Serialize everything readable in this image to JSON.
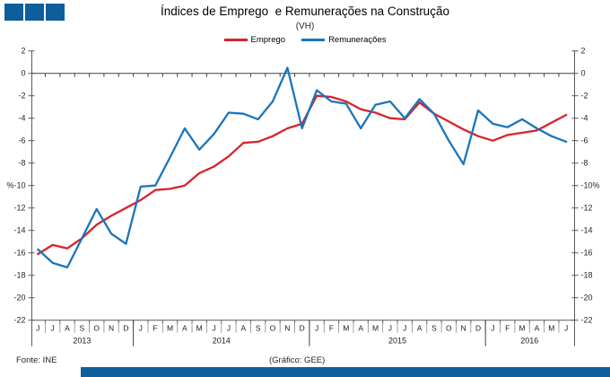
{
  "title": "Índices de Emprego  e Remunerações na Construção",
  "subtitle": "(VH)",
  "brand": {
    "logo_color": "#0d5e9b",
    "footer_bar_color": "#0d5e9b"
  },
  "legend": [
    {
      "label": "Emprego",
      "color": "#d9232a"
    },
    {
      "label": "Remunerações",
      "color": "#1b75bc"
    }
  ],
  "footer": {
    "source": "Fonte: INE",
    "credit": "(Gráfico: GEE)"
  },
  "chart_data": {
    "type": "line",
    "title": "Índices de Emprego e Remunerações na Construção (VH)",
    "unit": "%",
    "ylim": [
      -22,
      2
    ],
    "ytick_step": 2,
    "grid": false,
    "legend_position": "top",
    "axis_color": "#595959",
    "years": [
      {
        "label": "2013",
        "months": [
          "J",
          "J",
          "A",
          "S",
          "O",
          "N",
          "D"
        ]
      },
      {
        "label": "2014",
        "months": [
          "J",
          "F",
          "M",
          "A",
          "M",
          "J",
          "J",
          "A",
          "S",
          "O",
          "N",
          "D"
        ]
      },
      {
        "label": "2015",
        "months": [
          "J",
          "F",
          "M",
          "A",
          "M",
          "J",
          "J",
          "A",
          "S",
          "O",
          "N",
          "D"
        ]
      },
      {
        "label": "2016",
        "months": [
          "J",
          "F",
          "M",
          "A",
          "M",
          "J"
        ]
      }
    ],
    "series": [
      {
        "name": "Emprego",
        "color": "#d9232a",
        "values": [
          -16.1,
          -15.3,
          -15.6,
          -14.7,
          -13.5,
          -12.7,
          -12.0,
          -11.3,
          -10.4,
          -10.3,
          -10.0,
          -8.9,
          -8.3,
          -7.4,
          -6.2,
          -6.1,
          -5.6,
          -4.9,
          -4.5,
          -2.0,
          -2.1,
          -2.5,
          -3.2,
          -3.5,
          -4.0,
          -4.1,
          -2.6,
          -3.6,
          -4.3,
          -5.0,
          -5.6,
          -6.0,
          -5.5,
          -5.3,
          -5.1,
          -4.4,
          -3.7
        ]
      },
      {
        "name": "Remunerações",
        "color": "#1b75bc",
        "values": [
          -15.7,
          -16.9,
          -17.3,
          -14.7,
          -12.1,
          -14.3,
          -15.2,
          -10.1,
          -10.0,
          -7.5,
          -4.9,
          -6.8,
          -5.4,
          -3.5,
          -3.6,
          -4.1,
          -2.5,
          0.5,
          -4.9,
          -1.5,
          -2.5,
          -2.7,
          -4.9,
          -2.8,
          -2.5,
          -4.0,
          -2.3,
          -3.6,
          -6.0,
          -8.1,
          -3.3,
          -4.5,
          -4.8,
          -4.1,
          -4.9,
          -5.6,
          -6.1
        ]
      }
    ]
  }
}
